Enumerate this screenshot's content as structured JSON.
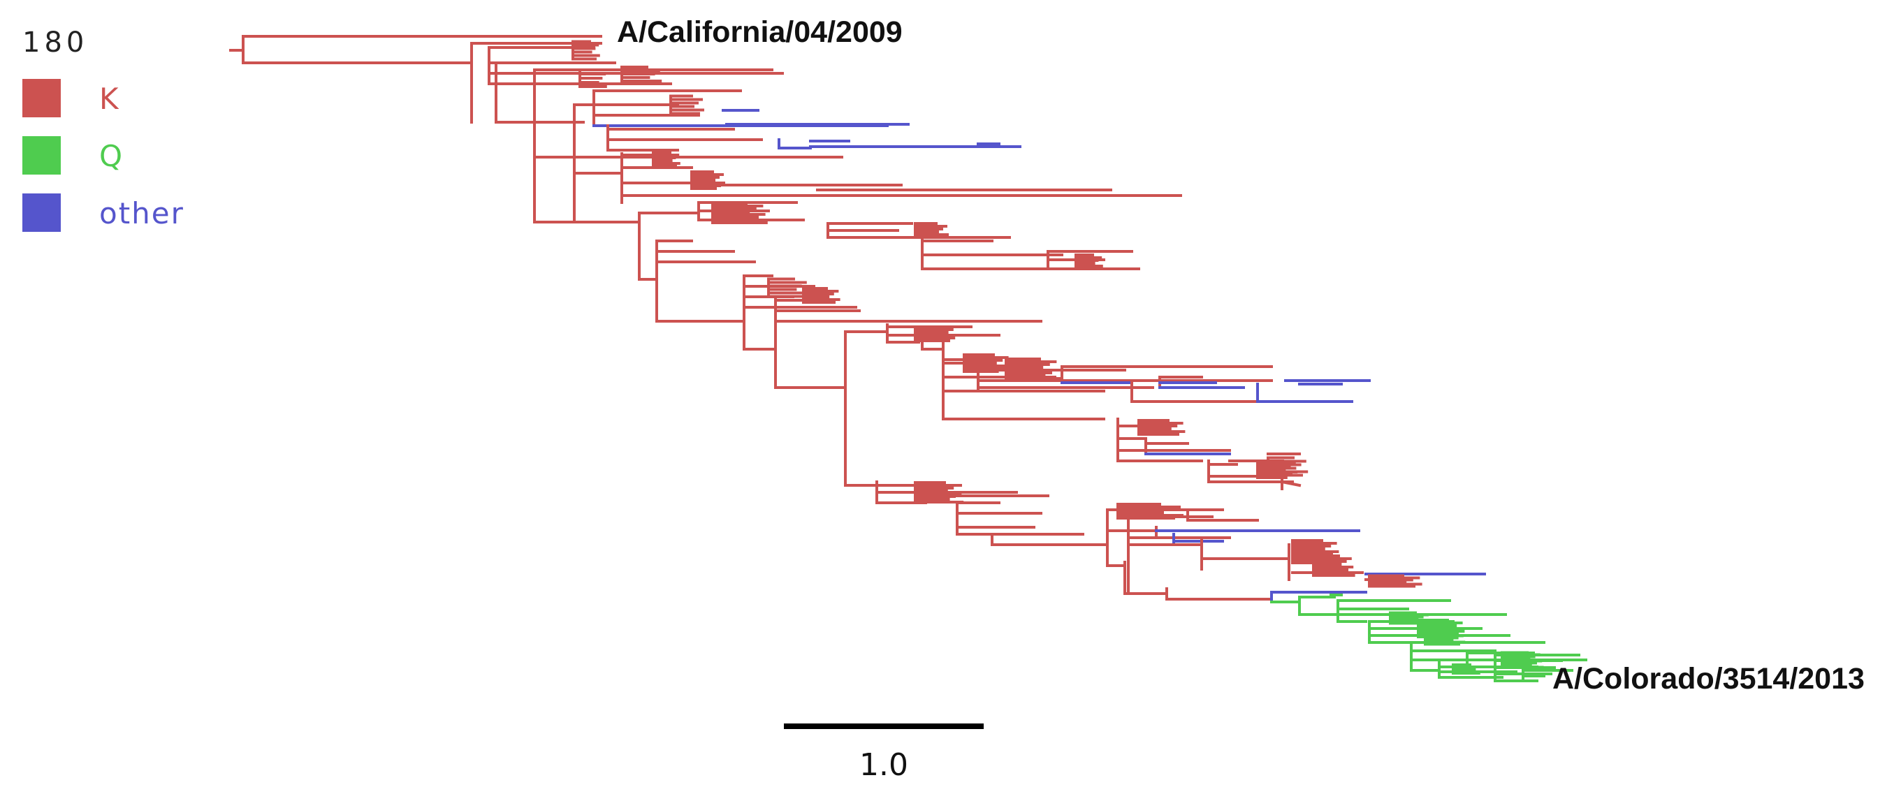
{
  "legend": {
    "title": "180",
    "items": [
      {
        "label": "K",
        "color": "#cc5250"
      },
      {
        "label": "Q",
        "color": "#4fcc4f"
      },
      {
        "label": "other",
        "color": "#5555cc"
      }
    ]
  },
  "tips": {
    "top": "A/California/04/2009",
    "bottom": "A/Colorado/3514/2013"
  },
  "scale": {
    "label": "1.0"
  },
  "colors": {
    "K": "#cc5250",
    "Q": "#4fcc4f",
    "other": "#5555cc"
  }
}
